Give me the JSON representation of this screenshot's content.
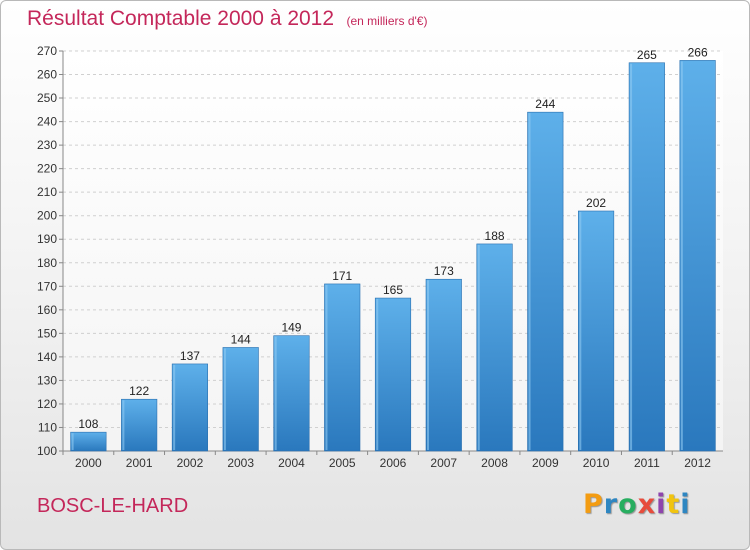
{
  "chart_data": {
    "type": "bar",
    "title": "Résultat Comptable 2000 à 2012",
    "subtitle": "(en milliers d'€)",
    "xlabel": "",
    "ylabel": "",
    "categories": [
      "2000",
      "2001",
      "2002",
      "2003",
      "2004",
      "2005",
      "2006",
      "2007",
      "2008",
      "2009",
      "2010",
      "2011",
      "2012"
    ],
    "values": [
      108,
      122,
      137,
      144,
      149,
      171,
      165,
      173,
      188,
      244,
      202,
      265,
      266
    ],
    "ylim": [
      100,
      270
    ],
    "yticks": [
      100,
      110,
      120,
      130,
      140,
      150,
      160,
      170,
      180,
      190,
      200,
      210,
      220,
      230,
      240,
      250,
      260,
      270
    ],
    "grid": true,
    "legend": "none",
    "bar_color": "#3a8fd6",
    "title_color": "#c4275a"
  },
  "footer": {
    "commune": "BOSC-LE-HARD"
  },
  "logo": {
    "letters": [
      "P",
      "r",
      "o",
      "x",
      "i",
      "t",
      "i"
    ],
    "colors": [
      "#f39c12",
      "#2e86c1",
      "#27ae60",
      "#e74c3c",
      "#8e44ad",
      "#f1c40f",
      "#2e86c1"
    ]
  }
}
